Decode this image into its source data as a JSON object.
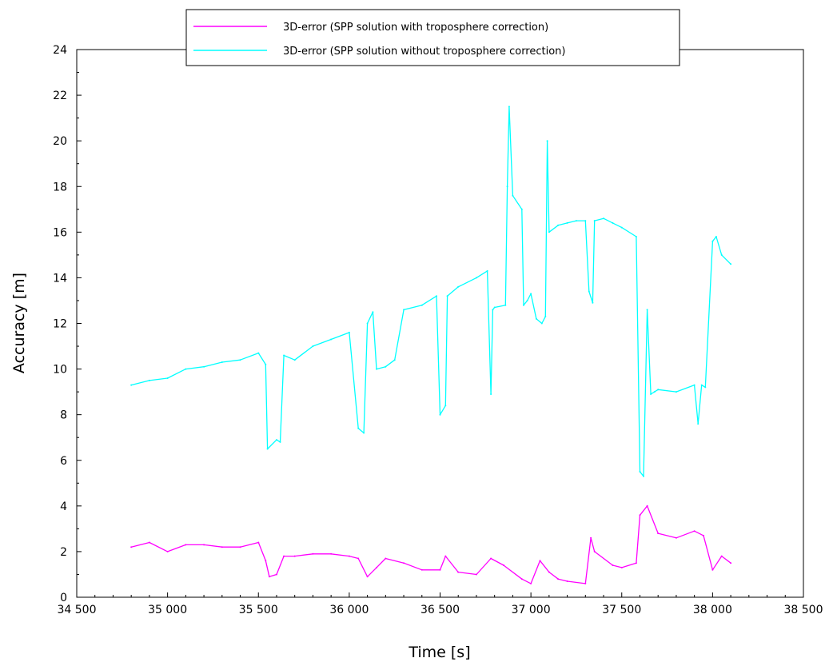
{
  "chart_data": {
    "type": "line",
    "xlabel": "Time [s]",
    "ylabel": "Accuracy [m]",
    "xlim": [
      34500,
      38500
    ],
    "ylim": [
      0,
      24
    ],
    "x_ticks": [
      34500,
      35000,
      35500,
      36000,
      36500,
      37000,
      37500,
      38000,
      38500
    ],
    "x_tick_labels": [
      "34 500",
      "35 000",
      "35 500",
      "36 000",
      "36 500",
      "37 000",
      "37 500",
      "38 000",
      "38 500"
    ],
    "y_ticks": [
      0,
      2,
      4,
      6,
      8,
      10,
      12,
      14,
      16,
      18,
      20,
      22,
      24
    ],
    "y_tick_labels": [
      "0",
      "2",
      "4",
      "6",
      "8",
      "10",
      "12",
      "14",
      "16",
      "18",
      "20",
      "22",
      "24"
    ],
    "grid": false,
    "legend_position": "top-center",
    "series": [
      {
        "name": "3D-error (SPP solution with troposphere correction)",
        "color": "#ff00ff",
        "x": [
          34800,
          34900,
          35000,
          35100,
          35200,
          35300,
          35400,
          35500,
          35540,
          35560,
          35600,
          35640,
          35700,
          35800,
          35900,
          36000,
          36050,
          36100,
          36150,
          36200,
          36300,
          36400,
          36500,
          36530,
          36600,
          36700,
          36780,
          36850,
          36950,
          37000,
          37050,
          37100,
          37150,
          37200,
          37300,
          37330,
          37350,
          37450,
          37500,
          37580,
          37600,
          37640,
          37700,
          37800,
          37900,
          37950,
          38000,
          38050,
          38100
        ],
        "y": [
          2.2,
          2.4,
          2.0,
          2.3,
          2.3,
          2.2,
          2.2,
          2.4,
          1.6,
          0.9,
          1.0,
          1.8,
          1.8,
          1.9,
          1.9,
          1.8,
          1.7,
          0.9,
          1.3,
          1.7,
          1.5,
          1.2,
          1.2,
          1.8,
          1.1,
          1.0,
          1.7,
          1.4,
          0.8,
          0.6,
          1.6,
          1.1,
          0.8,
          0.7,
          0.6,
          2.6,
          2.0,
          1.4,
          1.3,
          1.5,
          3.6,
          4.0,
          2.8,
          2.6,
          2.9,
          2.7,
          1.2,
          1.8,
          1.5
        ]
      },
      {
        "name": "3D-error (SPP solution without troposphere correction)",
        "color": "#00ffff",
        "x": [
          34800,
          34900,
          35000,
          35100,
          35200,
          35300,
          35400,
          35500,
          35540,
          35550,
          35600,
          35620,
          35640,
          35700,
          35800,
          35900,
          36000,
          36050,
          36080,
          36100,
          36130,
          36150,
          36200,
          36250,
          36300,
          36400,
          36480,
          36500,
          36530,
          36540,
          36600,
          36700,
          36760,
          36780,
          36790,
          36800,
          36860,
          36870,
          36880,
          36900,
          36950,
          36960,
          36980,
          37000,
          37030,
          37060,
          37080,
          37090,
          37100,
          37150,
          37200,
          37250,
          37300,
          37320,
          37340,
          37350,
          37400,
          37450,
          37500,
          37580,
          37600,
          37620,
          37640,
          37660,
          37680,
          37700,
          37800,
          37900,
          37920,
          37940,
          37960,
          38000,
          38020,
          38050,
          38100
        ],
        "y": [
          9.3,
          9.5,
          9.6,
          10.0,
          10.1,
          10.3,
          10.4,
          10.7,
          10.2,
          6.5,
          6.9,
          6.8,
          10.6,
          10.4,
          11.0,
          11.3,
          11.6,
          7.4,
          7.2,
          12.0,
          12.5,
          10.0,
          10.1,
          10.4,
          12.6,
          12.8,
          13.2,
          8.0,
          8.4,
          13.2,
          13.6,
          14.0,
          14.3,
          8.9,
          12.6,
          12.7,
          12.8,
          18.0,
          21.5,
          17.6,
          17.0,
          12.8,
          13.0,
          13.3,
          12.2,
          12.0,
          12.3,
          20.0,
          16.0,
          16.3,
          16.4,
          16.5,
          16.5,
          13.4,
          12.9,
          16.5,
          16.6,
          16.4,
          16.2,
          15.8,
          5.5,
          5.3,
          12.6,
          8.9,
          9.0,
          9.1,
          9.0,
          9.3,
          7.6,
          9.3,
          9.2,
          15.6,
          15.8,
          15.0,
          14.6
        ]
      }
    ]
  }
}
